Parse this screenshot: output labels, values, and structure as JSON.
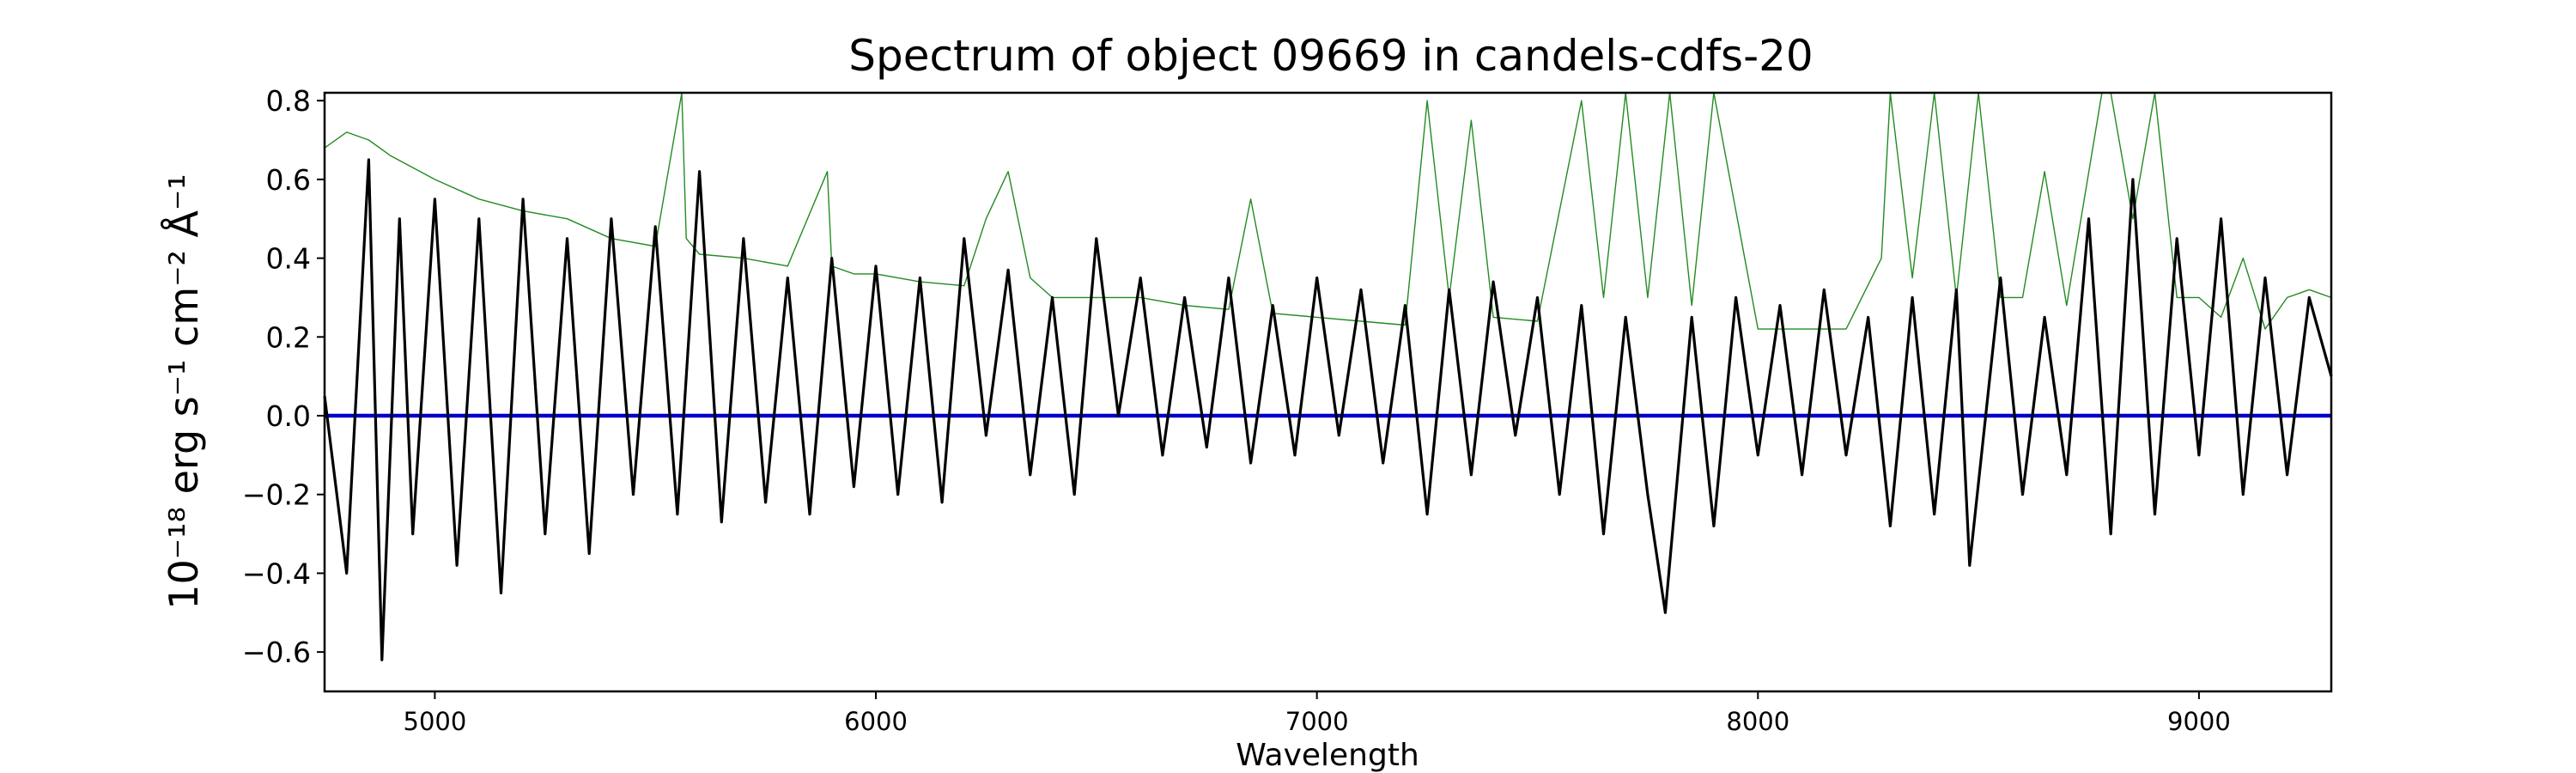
{
  "chart_data": {
    "type": "line",
    "title": "Spectrum of object 09669 in candels-cdfs-20",
    "xlabel": "Wavelength",
    "ylabel": "10⁻¹⁸ erg s⁻¹ cm⁻² Å⁻¹",
    "xlim": [
      4750,
      9300
    ],
    "ylim": [
      -0.7,
      0.82
    ],
    "xticks": [
      5000,
      6000,
      7000,
      8000,
      9000
    ],
    "yticks": [
      -0.6,
      -0.4,
      -0.2,
      0.0,
      0.2,
      0.4,
      0.6,
      0.8
    ],
    "grid": false,
    "colors": {
      "flux": "#000000",
      "error": "#228b22",
      "zero": "#0000cd"
    },
    "series": [
      {
        "role": "flux",
        "x": [
          4750,
          4800,
          4850,
          4880,
          4920,
          4950,
          5000,
          5050,
          5100,
          5150,
          5200,
          5250,
          5300,
          5350,
          5400,
          5450,
          5500,
          5550,
          5600,
          5650,
          5700,
          5750,
          5800,
          5850,
          5900,
          5950,
          6000,
          6050,
          6100,
          6150,
          6200,
          6250,
          6300,
          6350,
          6400,
          6450,
          6500,
          6550,
          6600,
          6650,
          6700,
          6750,
          6800,
          6850,
          6900,
          6950,
          7000,
          7050,
          7100,
          7150,
          7200,
          7250,
          7300,
          7350,
          7400,
          7450,
          7500,
          7550,
          7600,
          7650,
          7700,
          7750,
          7790,
          7850,
          7900,
          7950,
          8000,
          8050,
          8100,
          8150,
          8200,
          8250,
          8300,
          8350,
          8400,
          8450,
          8480,
          8550,
          8600,
          8650,
          8700,
          8750,
          8800,
          8850,
          8900,
          8950,
          9000,
          9050,
          9100,
          9150,
          9200,
          9250,
          9300
        ],
        "y": [
          0.05,
          -0.4,
          0.65,
          -0.62,
          0.5,
          -0.3,
          0.55,
          -0.38,
          0.5,
          -0.45,
          0.55,
          -0.3,
          0.45,
          -0.35,
          0.5,
          -0.2,
          0.48,
          -0.25,
          0.62,
          -0.27,
          0.45,
          -0.22,
          0.35,
          -0.25,
          0.4,
          -0.18,
          0.38,
          -0.2,
          0.35,
          -0.22,
          0.45,
          -0.05,
          0.37,
          -0.15,
          0.3,
          -0.2,
          0.45,
          0.0,
          0.35,
          -0.1,
          0.3,
          -0.08,
          0.35,
          -0.12,
          0.28,
          -0.1,
          0.35,
          -0.05,
          0.32,
          -0.12,
          0.28,
          -0.25,
          0.32,
          -0.15,
          0.34,
          -0.05,
          0.3,
          -0.2,
          0.28,
          -0.3,
          0.25,
          -0.2,
          -0.5,
          0.25,
          -0.28,
          0.3,
          -0.1,
          0.28,
          -0.15,
          0.32,
          -0.1,
          0.25,
          -0.28,
          0.3,
          -0.25,
          0.32,
          -0.38,
          0.35,
          -0.2,
          0.25,
          -0.15,
          0.5,
          -0.3,
          0.6,
          -0.25,
          0.45,
          -0.1,
          0.5,
          -0.2,
          0.35,
          -0.15,
          0.3,
          0.1
        ]
      },
      {
        "role": "error",
        "x": [
          4750,
          4800,
          4850,
          4900,
          5000,
          5100,
          5200,
          5300,
          5400,
          5500,
          5560,
          5570,
          5600,
          5700,
          5800,
          5890,
          5900,
          5950,
          6000,
          6100,
          6200,
          6250,
          6300,
          6350,
          6400,
          6500,
          6600,
          6700,
          6800,
          6850,
          6900,
          7000,
          7100,
          7200,
          7250,
          7300,
          7350,
          7400,
          7500,
          7600,
          7650,
          7700,
          7750,
          7800,
          7850,
          7900,
          8000,
          8100,
          8200,
          8280,
          8300,
          8350,
          8400,
          8450,
          8500,
          8550,
          8600,
          8650,
          8700,
          8780,
          8800,
          8850,
          8900,
          8950,
          9000,
          9050,
          9100,
          9150,
          9200,
          9250,
          9300
        ],
        "y": [
          0.68,
          0.72,
          0.7,
          0.66,
          0.6,
          0.55,
          0.52,
          0.5,
          0.45,
          0.43,
          0.82,
          0.45,
          0.41,
          0.4,
          0.38,
          0.62,
          0.38,
          0.36,
          0.36,
          0.34,
          0.33,
          0.5,
          0.62,
          0.35,
          0.3,
          0.3,
          0.3,
          0.28,
          0.27,
          0.55,
          0.26,
          0.25,
          0.24,
          0.23,
          0.8,
          0.3,
          0.75,
          0.25,
          0.24,
          0.8,
          0.3,
          0.82,
          0.3,
          0.82,
          0.28,
          0.82,
          0.22,
          0.22,
          0.22,
          0.4,
          0.82,
          0.35,
          0.82,
          0.3,
          0.82,
          0.3,
          0.3,
          0.62,
          0.28,
          0.82,
          0.82,
          0.5,
          0.82,
          0.3,
          0.3,
          0.25,
          0.4,
          0.22,
          0.3,
          0.32,
          0.3
        ]
      },
      {
        "role": "zero",
        "x": [
          4750,
          9300
        ],
        "y": [
          0.0,
          0.0
        ]
      }
    ]
  }
}
